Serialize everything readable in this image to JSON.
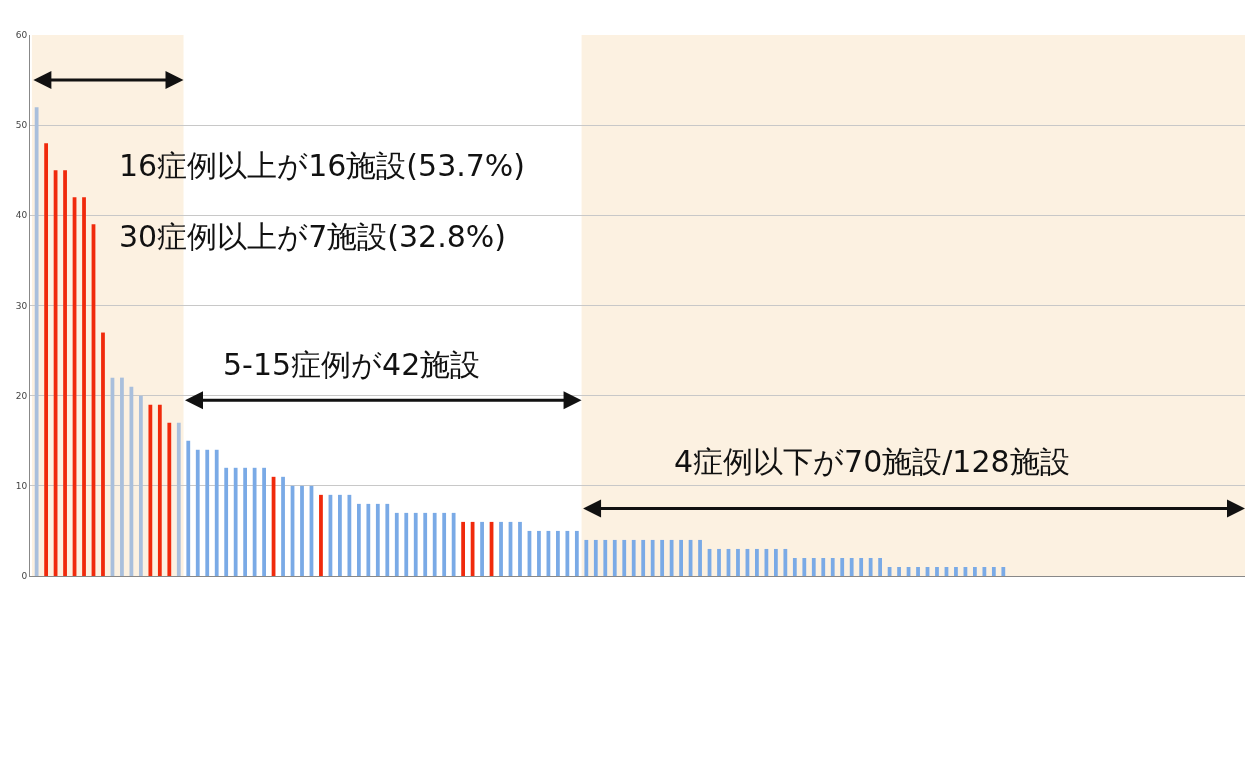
{
  "chart_data": {
    "type": "bar",
    "categories": [
      null,
      null,
      null,
      null,
      null,
      null,
      null,
      null,
      null,
      null,
      null,
      null,
      null,
      null,
      null,
      null,
      null,
      null,
      null,
      null,
      null,
      null,
      null,
      null,
      null,
      null,
      null,
      null,
      null,
      null,
      null,
      null,
      null,
      null,
      null,
      null,
      null,
      null,
      null,
      null,
      null,
      null,
      null,
      null,
      null,
      null,
      null,
      null,
      null,
      null,
      null,
      null,
      null,
      null,
      null,
      null,
      null,
      null,
      null,
      null,
      null,
      null,
      null,
      null,
      null,
      null,
      null,
      null,
      null,
      null,
      null,
      null,
      null,
      null,
      null,
      null,
      null,
      null,
      null,
      null,
      null,
      null,
      null,
      null,
      null,
      null,
      null,
      null,
      null,
      null,
      null,
      null,
      null,
      null,
      null,
      null,
      null,
      null,
      null,
      null,
      null,
      null,
      null,
      null,
      null,
      null,
      null,
      null,
      null,
      null,
      null,
      null,
      null,
      null,
      null,
      null,
      null,
      null,
      null,
      null,
      null,
      null,
      null,
      null,
      null,
      null,
      null,
      null
    ],
    "values": [
      52,
      48,
      45,
      45,
      42,
      42,
      39,
      27,
      22,
      22,
      21,
      20,
      19,
      19,
      17,
      17,
      15,
      14,
      14,
      14,
      12,
      12,
      12,
      12,
      12,
      11,
      11,
      10,
      10,
      10,
      9,
      9,
      9,
      9,
      8,
      8,
      8,
      8,
      7,
      7,
      7,
      7,
      7,
      7,
      7,
      6,
      6,
      6,
      6,
      6,
      6,
      6,
      5,
      5,
      5,
      5,
      5,
      5,
      4,
      4,
      4,
      4,
      4,
      4,
      4,
      4,
      4,
      4,
      4,
      4,
      4,
      3,
      3,
      3,
      3,
      3,
      3,
      3,
      3,
      3,
      2,
      2,
      2,
      2,
      2,
      2,
      2,
      2,
      2,
      2,
      1,
      1,
      1,
      1,
      1,
      1,
      1,
      1,
      1,
      1,
      1,
      1,
      1,
      0,
      0,
      0,
      0,
      0,
      0,
      0,
      0,
      0,
      0,
      0,
      0,
      0,
      0,
      0,
      0,
      0,
      0,
      0,
      0,
      0,
      0,
      0,
      0,
      0
    ],
    "colors": [
      "#a9bfdc",
      "#f02a0c",
      "#f02a0c",
      "#f02a0c",
      "#f02a0c",
      "#f02a0c",
      "#f02a0c",
      "#f02a0c",
      "#a9bfdc",
      "#a9bfdc",
      "#a9bfdc",
      "#a9bfdc",
      "#f02a0c",
      "#f02a0c",
      "#f02a0c",
      "#a9bfdc",
      "#7aaae6",
      "#7aaae6",
      "#7aaae6",
      "#7aaae6",
      "#7aaae6",
      "#7aaae6",
      "#7aaae6",
      "#7aaae6",
      "#7aaae6",
      "#f02a0c",
      "#7aaae6",
      "#7aaae6",
      "#7aaae6",
      "#7aaae6",
      "#f02a0c",
      "#7aaae6",
      "#7aaae6",
      "#7aaae6",
      "#7aaae6",
      "#7aaae6",
      "#7aaae6",
      "#7aaae6",
      "#7aaae6",
      "#7aaae6",
      "#7aaae6",
      "#7aaae6",
      "#7aaae6",
      "#7aaae6",
      "#7aaae6",
      "#f02a0c",
      "#f02a0c",
      "#7aaae6",
      "#f02a0c",
      "#7aaae6",
      "#7aaae6",
      "#7aaae6",
      "#7aaae6",
      "#7aaae6",
      "#7aaae6",
      "#7aaae6",
      "#7aaae6",
      "#7aaae6",
      "#7aaae6",
      "#7aaae6",
      "#7aaae6",
      "#7aaae6",
      "#7aaae6",
      "#7aaae6",
      "#7aaae6",
      "#7aaae6",
      "#7aaae6",
      "#7aaae6",
      "#7aaae6",
      "#7aaae6",
      "#7aaae6",
      "#7aaae6",
      "#7aaae6",
      "#7aaae6",
      "#7aaae6",
      "#7aaae6",
      "#7aaae6",
      "#7aaae6",
      "#7aaae6",
      "#7aaae6",
      "#7aaae6",
      "#7aaae6",
      "#7aaae6",
      "#7aaae6",
      "#7aaae6",
      "#7aaae6",
      "#7aaae6",
      "#7aaae6",
      "#7aaae6",
      "#7aaae6",
      "#7aaae6",
      "#7aaae6",
      "#7aaae6",
      "#7aaae6",
      "#7aaae6",
      "#7aaae6",
      "#7aaae6",
      "#7aaae6",
      "#7aaae6",
      "#7aaae6",
      "#7aaae6",
      "#7aaae6",
      "#7aaae6",
      "#7aaae6",
      "#7aaae6",
      "#7aaae6",
      "#7aaae6",
      "#7aaae6",
      "#7aaae6",
      "#7aaae6",
      "#7aaae6",
      "#7aaae6",
      "#7aaae6",
      "#7aaae6",
      "#7aaae6",
      "#7aaae6",
      "#7aaae6",
      "#7aaae6",
      "#7aaae6",
      "#7aaae6",
      "#7aaae6",
      "#7aaae6",
      "#7aaae6",
      "#7aaae6",
      "#7aaae6",
      "#7aaae6",
      "#7aaae6",
      "#7aaae6"
    ],
    "ylim": [
      0,
      60
    ],
    "yticks": [
      0,
      10,
      20,
      30,
      40,
      50,
      60
    ],
    "grid": "y",
    "tick_labels": "y",
    "annotations": [
      "16症例以上が16施設(53.7%)",
      "30症例以上が7施設(32.8%)",
      "5-15症例が42施設",
      "4症例以下が70施設/128施設"
    ]
  }
}
